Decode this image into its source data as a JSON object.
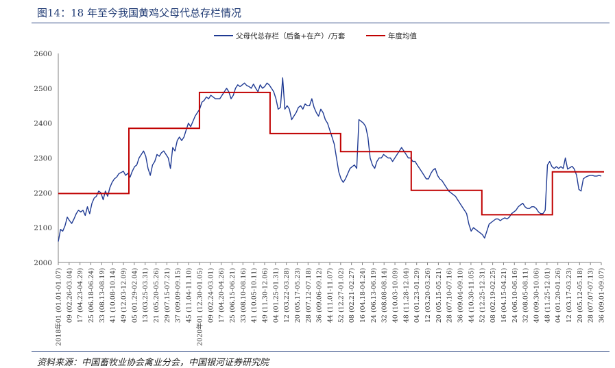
{
  "figure": {
    "title": "图14：18 年至今我国黄鸡父母代总存栏情况",
    "source": "资料来源：中国畜牧业协会禽业分会，中国银河证券研究院"
  },
  "colors": {
    "series_weekly": "#1f3a93",
    "series_avg": "#c00000",
    "axis": "#808080",
    "rule": "#2b4580"
  },
  "chart_data": {
    "type": "line",
    "title": "",
    "xlabel": "",
    "ylabel": "",
    "ylim": [
      2000,
      2600
    ],
    "yticks": [
      2000,
      2100,
      2200,
      2300,
      2400,
      2500,
      2600
    ],
    "grid": false,
    "legend_position": "top-center",
    "x_tick_labels": [
      "2018年01 (01.01-01.07)",
      "09 (02.26-03.04)",
      "17 (04.23-04.29)",
      "25 (06.18-06.24)",
      "33 (08.13-08.19)",
      "41 (10.08-10.14)",
      "49 (12.03-12.09)",
      "05 (01.29-02.04)",
      "13 (03.25-03.31)",
      "21 (05.20-05.26)",
      "29 (07.15-07.21)",
      "37 (09.09-09.15)",
      "45 (11.04-11.10)",
      "2020年01 (12.30-01.05)",
      "09 (02.24-03.01)",
      "17 (04.20-04.26)",
      "25 (06.15-06.21)",
      "33 (08.10-08.16)",
      "41 (10.05-10.11)",
      "49 (11.30-12.06)",
      "04 (01.25-01.31)",
      "12 (03.22-03.28)",
      "20 (05.17-05.23)",
      "28 (07.12-07.18)",
      "36 (09.06-09.12)",
      "44 (11.01-11.07)",
      "52 (12.27-01.02)",
      "08 (02.21-02.27)",
      "16 (04.18-04.24)",
      "24 (06.13-06.19)",
      "32 (08.08-08.14)",
      "40 (10.03-10.09)",
      "48 (11.28-12.04)",
      "04 (01.23-01.29)",
      "12 (03.20-03.26)",
      "20 (05.15-05.21)",
      "28 (07.10-07.16)",
      "36 (09.04-09.10)",
      "44 (10.30-11.05)",
      "52 (12.25-12.31)",
      "08 (02.19-02.25)",
      "16 (04.15-04.21)",
      "24 (06.10-06.16)",
      "32 (08.05-08.11)",
      "40 (09.30-10.06)",
      "48 (11.25-12.01)",
      "04 (01.20-01.26)",
      "12 (03.17-03.23)",
      "20 (05.12-05.18)",
      "28 (07.07-07.13)",
      "36 (09.01-09.07)"
    ],
    "weeks_per_label": 8,
    "series": [
      {
        "name": "父母代总存栏（后备+在产）/万套",
        "style": "line",
        "values": [
          2060,
          2095,
          2090,
          2105,
          2130,
          2120,
          2112,
          2125,
          2140,
          2150,
          2145,
          2150,
          2135,
          2160,
          2140,
          2170,
          2185,
          2190,
          2205,
          2200,
          2180,
          2205,
          2190,
          2215,
          2230,
          2240,
          2245,
          2255,
          2258,
          2262,
          2250,
          2256,
          2245,
          2262,
          2275,
          2280,
          2300,
          2310,
          2320,
          2305,
          2270,
          2250,
          2280,
          2290,
          2310,
          2305,
          2315,
          2320,
          2310,
          2300,
          2270,
          2330,
          2320,
          2350,
          2360,
          2350,
          2360,
          2380,
          2400,
          2390,
          2405,
          2420,
          2430,
          2440,
          2460,
          2465,
          2475,
          2470,
          2480,
          2475,
          2470,
          2470,
          2470,
          2480,
          2490,
          2500,
          2490,
          2470,
          2480,
          2500,
          2510,
          2505,
          2510,
          2515,
          2508,
          2505,
          2500,
          2512,
          2500,
          2490,
          2510,
          2500,
          2505,
          2515,
          2510,
          2500,
          2490,
          2470,
          2440,
          2445,
          2530,
          2440,
          2450,
          2440,
          2410,
          2420,
          2430,
          2445,
          2450,
          2440,
          2455,
          2450,
          2450,
          2470,
          2445,
          2430,
          2420,
          2440,
          2430,
          2410,
          2400,
          2380,
          2360,
          2340,
          2300,
          2260,
          2240,
          2230,
          2240,
          2255,
          2270,
          2275,
          2280,
          2270,
          2410,
          2405,
          2400,
          2390,
          2360,
          2300,
          2280,
          2270,
          2290,
          2300,
          2300,
          2310,
          2305,
          2300,
          2300,
          2290,
          2300,
          2310,
          2320,
          2330,
          2320,
          2310,
          2300,
          2300,
          2290,
          2290,
          2280,
          2270,
          2260,
          2250,
          2240,
          2240,
          2255,
          2265,
          2270,
          2250,
          2240,
          2235,
          2225,
          2215,
          2205,
          2200,
          2195,
          2190,
          2180,
          2170,
          2160,
          2150,
          2140,
          2110,
          2090,
          2100,
          2095,
          2090,
          2085,
          2080,
          2070,
          2090,
          2110,
          2115,
          2120,
          2125,
          2125,
          2120,
          2125,
          2128,
          2125,
          2130,
          2140,
          2145,
          2150,
          2160,
          2165,
          2170,
          2160,
          2155,
          2155,
          2160,
          2160,
          2155,
          2145,
          2140,
          2140,
          2150,
          2280,
          2290,
          2275,
          2270,
          2275,
          2270,
          2275,
          2270,
          2300,
          2268,
          2272,
          2276,
          2268,
          2250,
          2210,
          2205,
          2240,
          2245,
          2248,
          2250,
          2250,
          2248,
          2248,
          2250,
          2248
        ]
      },
      {
        "name": "年度均值",
        "style": "step",
        "segments": [
          {
            "from_week": 0,
            "to_week": 52,
            "value": 2198
          },
          {
            "from_week": 52,
            "to_week": 104,
            "value": 2385
          },
          {
            "from_week": 104,
            "to_week": 156,
            "value": 2488
          },
          {
            "from_week": 156,
            "to_week": 208,
            "value": 2370
          },
          {
            "from_week": 208,
            "to_week": 260,
            "value": 2318
          },
          {
            "from_week": 260,
            "to_week": 312,
            "value": 2207
          },
          {
            "from_week": 312,
            "to_week": 364,
            "value": 2137
          },
          {
            "from_week": 364,
            "to_week": 402,
            "value": 2260
          }
        ]
      }
    ]
  }
}
